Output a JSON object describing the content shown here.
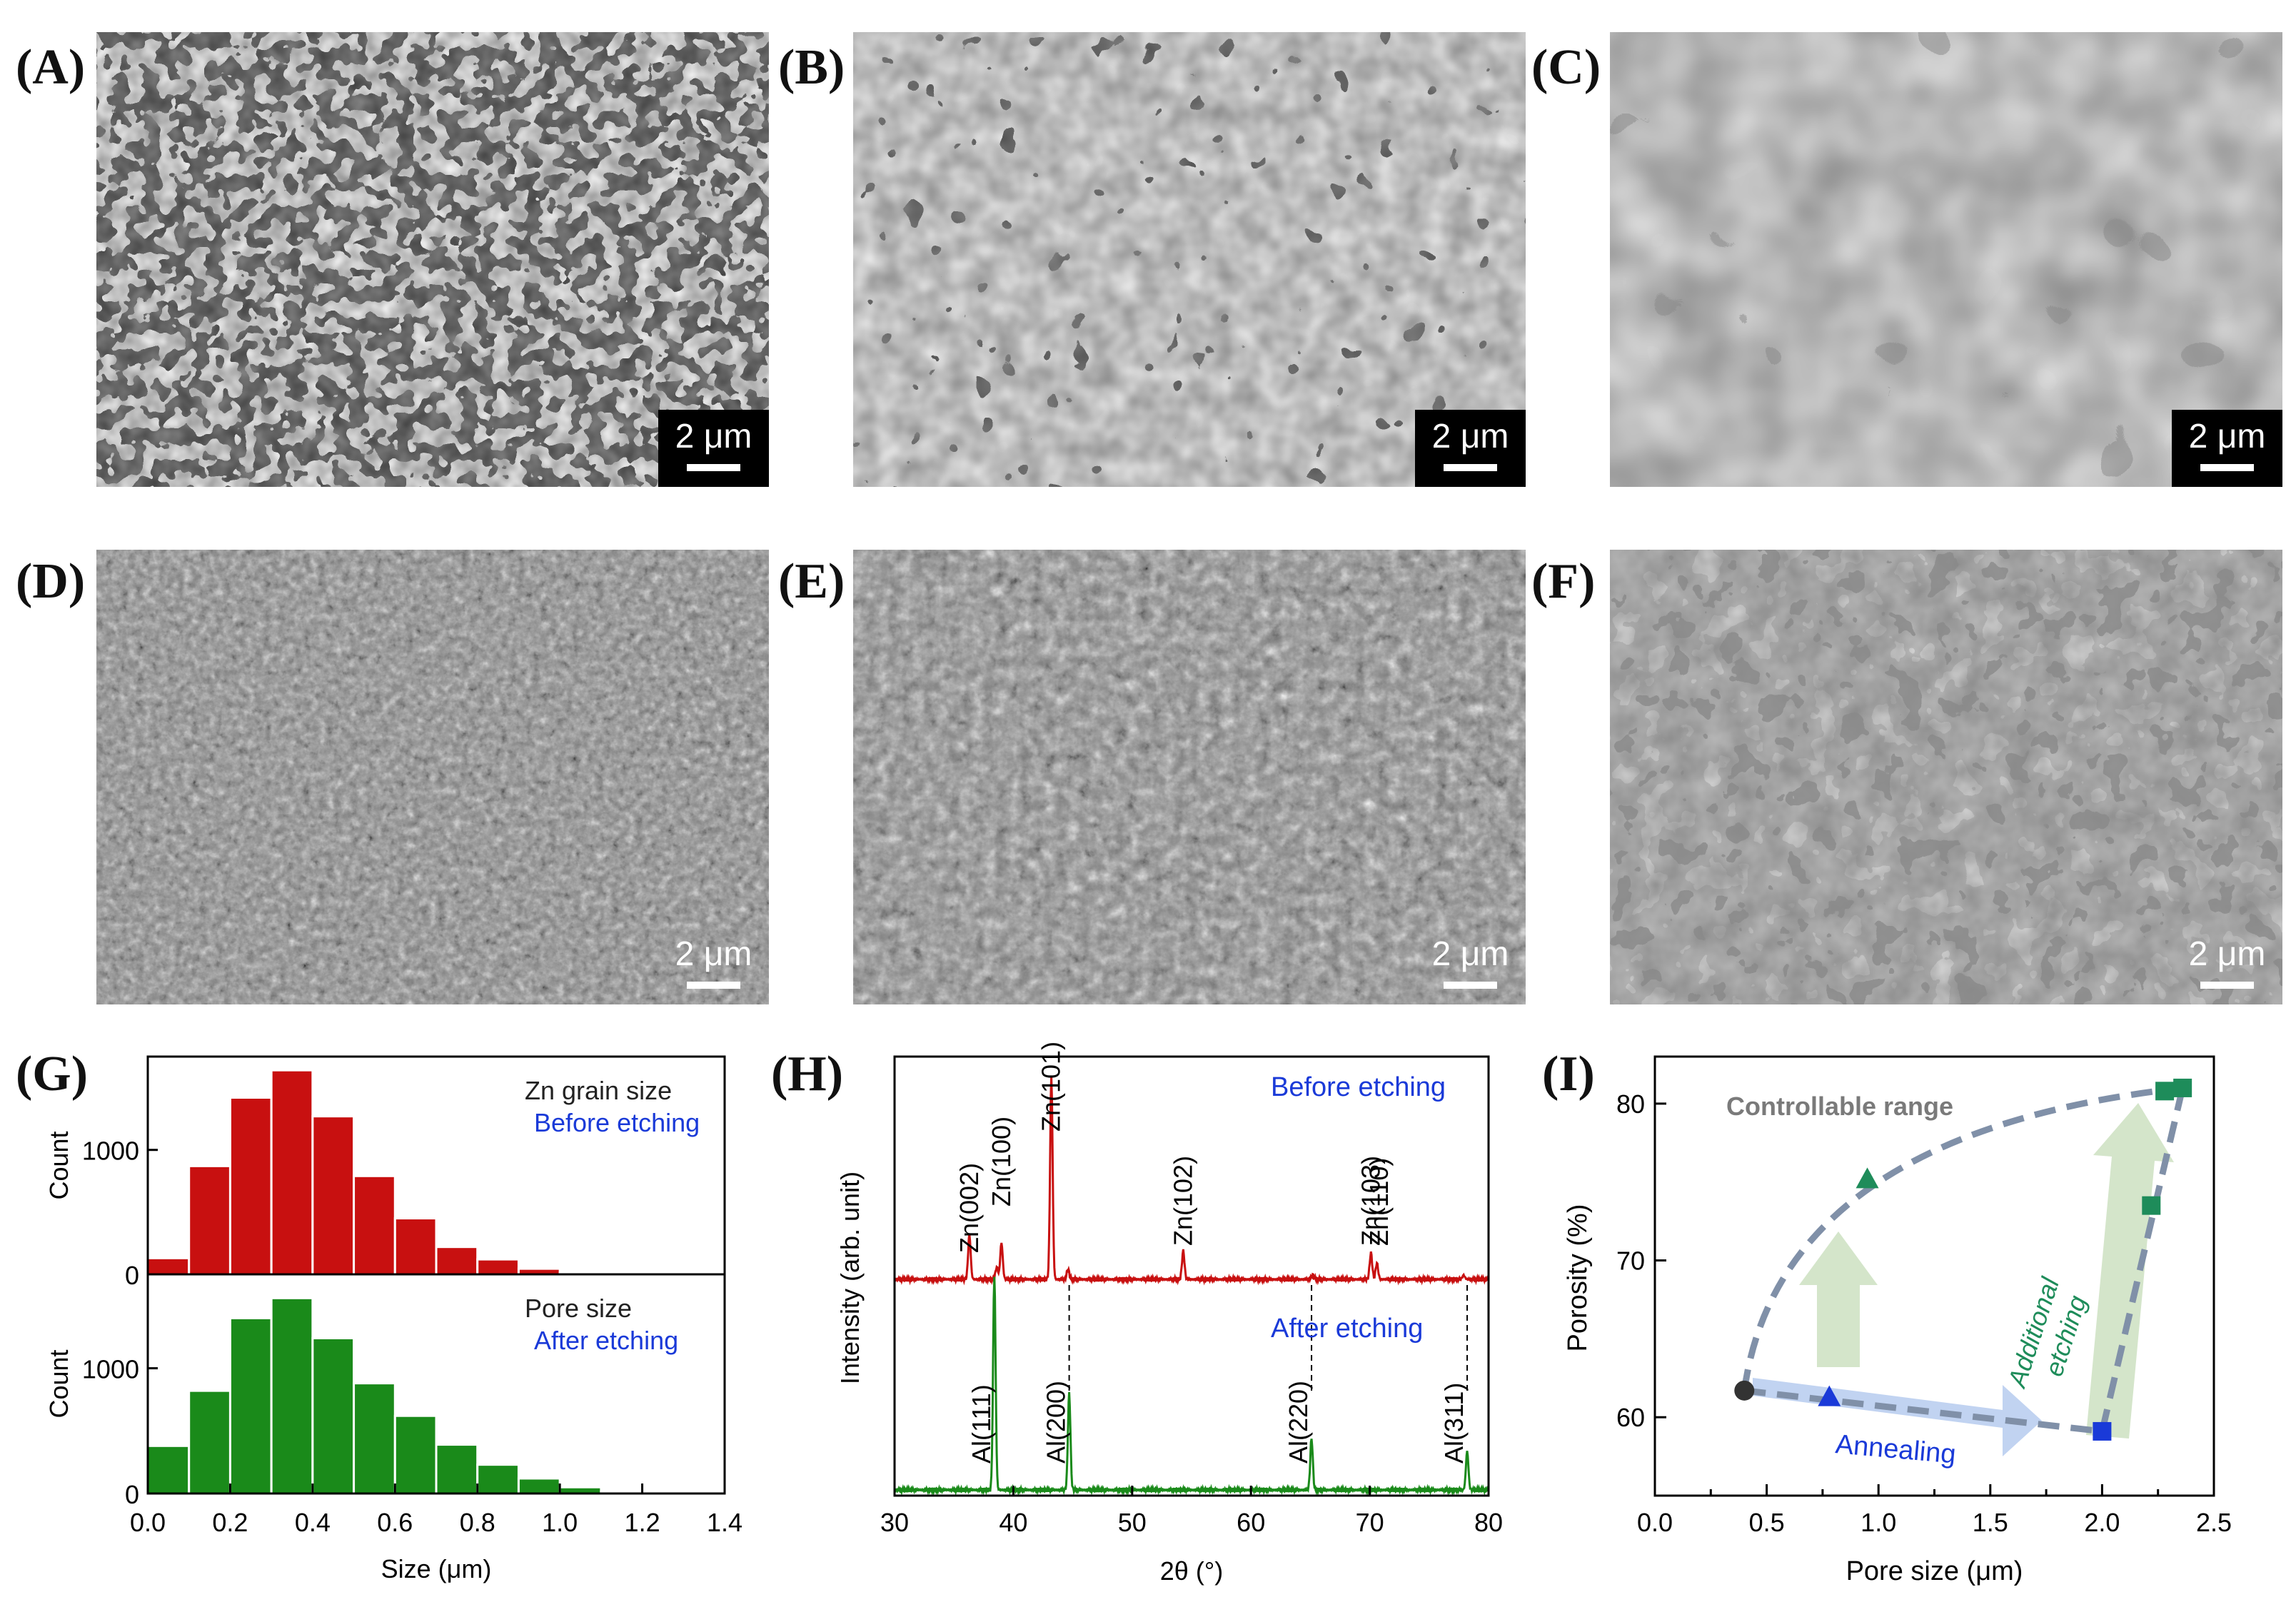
{
  "panel_labels": [
    "(A)",
    "(B)",
    "(C)",
    "(D)",
    "(E)",
    "(F)",
    "(G)",
    "(H)",
    "(I)"
  ],
  "scalebar_text": "2 μm",
  "colors": {
    "red": "#c81010",
    "green": "#1a8a1a",
    "blue": "#1a3ad8",
    "teal": "#1e8c5a",
    "slate": "#8090a8"
  },
  "chart_data": [
    {
      "type": "bar",
      "title": "Zn grain size",
      "subtitle": "Before etching",
      "ylabel": "Count",
      "xlabel": "Size (μm)",
      "ylim": [
        0,
        1750
      ],
      "yticks": [
        0,
        1000
      ],
      "xticks": [
        "0.0",
        "0.2",
        "0.4",
        "0.6",
        "0.8",
        "1.0",
        "1.2",
        "1.4"
      ],
      "bin_width": 0.1,
      "bin_starts": [
        0.0,
        0.1,
        0.2,
        0.3,
        0.4,
        0.5,
        0.6,
        0.7,
        0.8,
        0.9,
        1.0,
        1.1,
        1.2
      ],
      "values": [
        130,
        870,
        1420,
        1640,
        1270,
        790,
        450,
        220,
        120,
        45,
        12,
        5,
        2
      ]
    },
    {
      "type": "bar",
      "title": "Pore size",
      "subtitle": "After etching",
      "ylabel": "Count",
      "xlabel": "Size (μm)",
      "ylim": [
        0,
        1750
      ],
      "yticks": [
        0,
        1000
      ],
      "xticks": [
        "0.0",
        "0.2",
        "0.4",
        "0.6",
        "0.8",
        "1.0",
        "1.2",
        "1.4"
      ],
      "bin_width": 0.1,
      "bin_starts": [
        0.0,
        0.1,
        0.2,
        0.3,
        0.4,
        0.5,
        0.6,
        0.7,
        0.8,
        0.9,
        1.0,
        1.1,
        1.2
      ],
      "values": [
        380,
        820,
        1400,
        1560,
        1240,
        880,
        620,
        390,
        230,
        120,
        50,
        15,
        5
      ]
    },
    {
      "type": "line",
      "title_top": "Before etching",
      "title_bottom": "After etching",
      "xlabel": "2θ (°)",
      "ylabel": "Intensity (arb. unit)",
      "xlim": [
        30,
        80
      ],
      "xticks": [
        30,
        40,
        50,
        60,
        70,
        80
      ],
      "series": [
        {
          "name": "Before etching",
          "peaks": [
            [
              36.3,
              0.22
            ],
            [
              38.6,
              0.06
            ],
            [
              39.0,
              0.18
            ],
            [
              43.2,
              1.0
            ],
            [
              44.6,
              0.05
            ],
            [
              54.3,
              0.14
            ],
            [
              65.2,
              0.02
            ],
            [
              70.1,
              0.13
            ],
            [
              70.6,
              0.08
            ],
            [
              77.9,
              0.02
            ]
          ]
        },
        {
          "name": "After etching",
          "peaks": [
            [
              38.4,
              1.0
            ],
            [
              44.7,
              0.45
            ],
            [
              65.1,
              0.24
            ],
            [
              78.2,
              0.18
            ]
          ]
        }
      ],
      "top_labels": [
        [
          "Zn(002)",
          36.3
        ],
        [
          "Zn(100)",
          39.0
        ],
        [
          "Zn(101)",
          43.2
        ],
        [
          "Zn(102)",
          54.3
        ],
        [
          "Zn(103)",
          70.1
        ],
        [
          "Zn(110)",
          70.8
        ]
      ],
      "bottom_labels": [
        [
          "Al(111)",
          38.4
        ],
        [
          "Al(200)",
          44.7
        ],
        [
          "Al(220)",
          65.1
        ],
        [
          "Al(311)",
          78.2
        ]
      ]
    },
    {
      "type": "scatter",
      "xlabel": "Pore size (μm)",
      "ylabel": "Porosity (%)",
      "xlim": [
        0.0,
        2.5
      ],
      "ylim": [
        55,
        83
      ],
      "xticks": [
        "0.0",
        "0.5",
        "1.0",
        "1.5",
        "2.0",
        "2.5"
      ],
      "yticks": [
        60,
        70,
        80
      ],
      "annotations": {
        "range": "Controllable range",
        "annealing": "Annealing",
        "etching_line1": "Additional",
        "etching_line2": "etching"
      },
      "points": [
        {
          "x": 0.4,
          "y": 61.7,
          "marker": "circle",
          "color": "#333333"
        },
        {
          "x": 0.78,
          "y": 61.3,
          "marker": "triangle",
          "color": "#1a3ad8"
        },
        {
          "x": 2.0,
          "y": 59.1,
          "marker": "square",
          "color": "#1a3ad8"
        },
        {
          "x": 0.95,
          "y": 75.2,
          "marker": "triangle",
          "color": "#1e8c5a"
        },
        {
          "x": 2.22,
          "y": 73.5,
          "marker": "square",
          "color": "#1e8c5a"
        },
        {
          "x": 2.28,
          "y": 80.8,
          "marker": "square",
          "color": "#1e8c5a"
        },
        {
          "x": 2.36,
          "y": 81.0,
          "marker": "square",
          "color": "#1e8c5a"
        }
      ]
    }
  ]
}
